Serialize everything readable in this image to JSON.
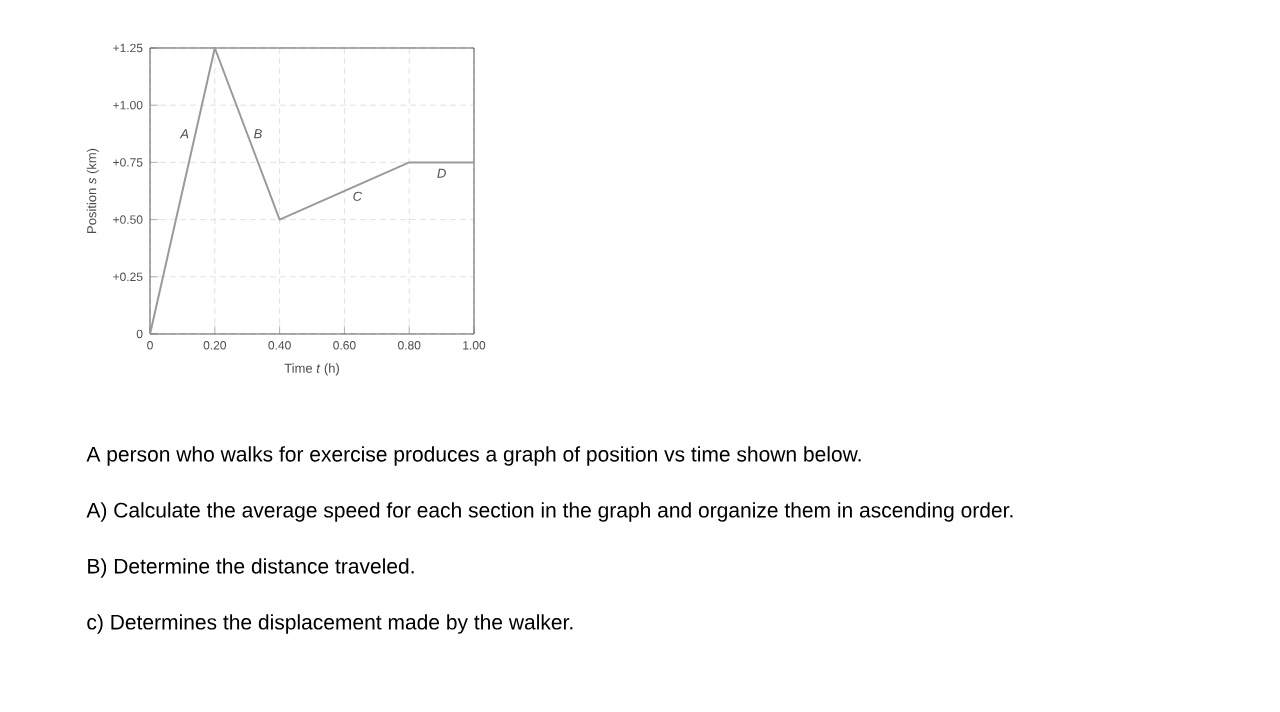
{
  "chart_data": {
    "type": "line",
    "xlabel": "Time *t* (h)",
    "ylabel": "Position *s* (km)",
    "x": [
      0,
      0.2,
      0.4,
      0.8,
      1.0
    ],
    "series": [
      {
        "color": "#9a9a9a",
        "values": [
          0,
          1.25,
          0.5,
          0.75,
          0.75
        ]
      }
    ],
    "xlim": [
      0,
      1.0
    ],
    "xticks": [
      0,
      {
        "value": 0.2,
        "label": "0.20"
      },
      {
        "value": 0.4,
        "label": "0.40"
      },
      {
        "value": 0.6,
        "label": "0.60"
      },
      {
        "value": 0.8,
        "label": "0.80"
      },
      {
        "value": 1.0,
        "label": "1.00"
      }
    ],
    "ylim": [
      0,
      1.25
    ],
    "yticks": [
      0,
      {
        "value": 0.25,
        "label": "+0.25"
      },
      {
        "value": 0.5,
        "label": "+0.50"
      },
      {
        "value": 0.75,
        "label": "+0.75"
      },
      {
        "value": 1.0,
        "label": "+1.00"
      },
      {
        "value": 1.25,
        "label": "+1.25"
      }
    ],
    "grid": true,
    "marker": "none",
    "line_style": "solid",
    "annotations": [
      {
        "text": "*A*",
        "x": 0.14,
        "y": 0.875
      },
      {
        "text": "*B*",
        "x": 0.3,
        "y": 0.875
      },
      {
        "text": "*C*",
        "x": 0.64,
        "y": 0.65
      },
      {
        "text": "*D*",
        "x": 0.9,
        "y": 0.75
      },
      "A person who walks for exercise produces a graph of position vs time shown below.",
      "A) Calculate the average speed for each section in the graph and organize them in ascending order.",
      "B) Determine the distance traveled.",
      "c) Determines the displacement made by the walker."
    ]
  }
}
